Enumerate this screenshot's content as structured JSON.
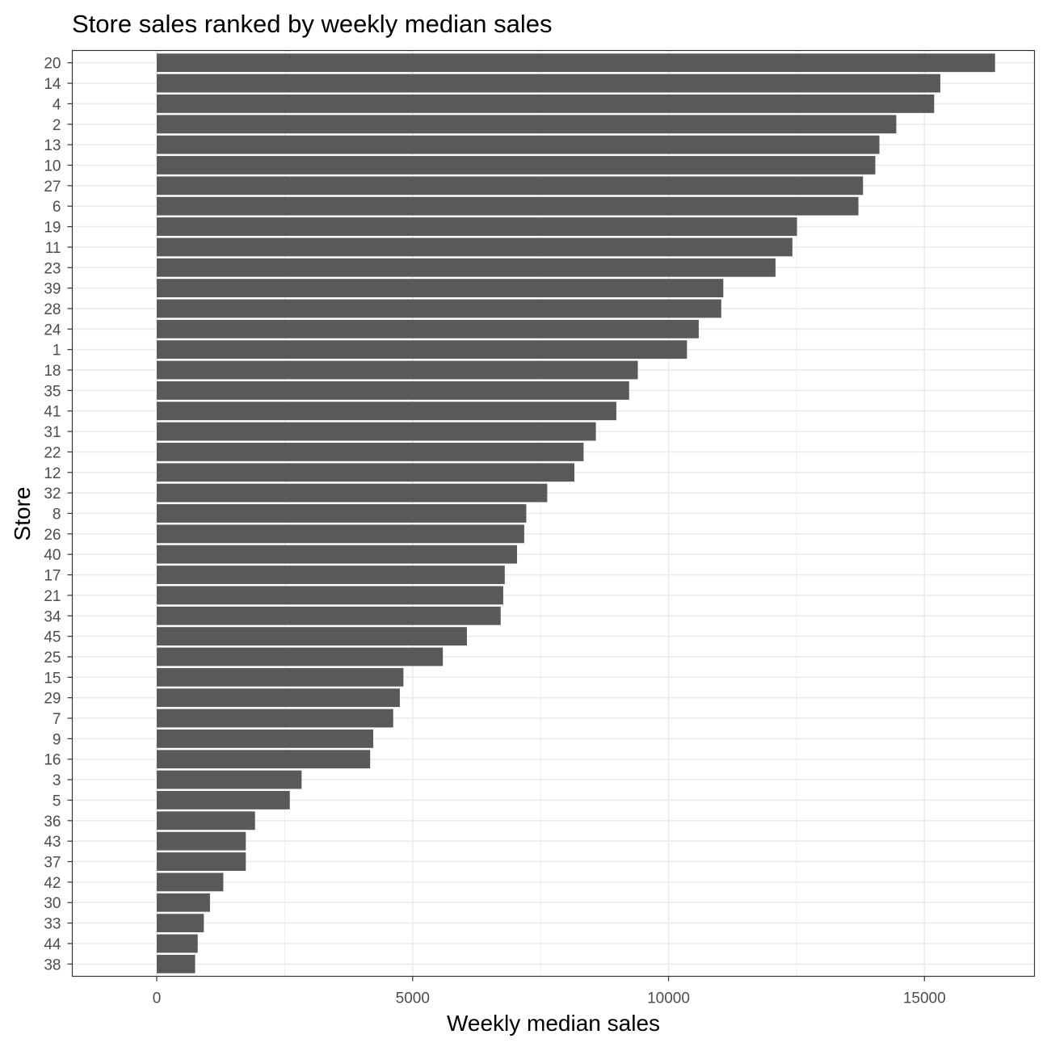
{
  "chart_data": {
    "type": "bar",
    "orientation": "horizontal",
    "title": "Store sales ranked by weekly median sales",
    "xlabel": "Weekly median sales",
    "ylabel": "Store",
    "xlim": [
      -1650,
      17150
    ],
    "x_ticks": [
      0,
      5000,
      10000,
      15000
    ],
    "x_tick_labels": [
      "0",
      "5000",
      "10000",
      "15000"
    ],
    "grid": true,
    "legend": "none",
    "bar_color": "#595959",
    "grid_color": "#ebebeb",
    "categories": [
      "20",
      "14",
      "4",
      "2",
      "13",
      "10",
      "27",
      "6",
      "19",
      "11",
      "23",
      "39",
      "28",
      "24",
      "1",
      "18",
      "35",
      "41",
      "31",
      "22",
      "12",
      "32",
      "8",
      "26",
      "40",
      "17",
      "21",
      "34",
      "45",
      "25",
      "15",
      "29",
      "7",
      "9",
      "16",
      "3",
      "5",
      "36",
      "43",
      "37",
      "42",
      "30",
      "33",
      "44",
      "38"
    ],
    "values": [
      16380,
      15310,
      15190,
      14450,
      14120,
      14040,
      13800,
      13710,
      12510,
      12420,
      12090,
      11070,
      11030,
      10590,
      10360,
      9400,
      9230,
      8980,
      8580,
      8340,
      8160,
      7630,
      7220,
      7180,
      7040,
      6800,
      6770,
      6720,
      6060,
      5590,
      4820,
      4750,
      4620,
      4230,
      4170,
      2830,
      2600,
      1920,
      1740,
      1740,
      1300,
      1040,
      920,
      800,
      750
    ]
  }
}
